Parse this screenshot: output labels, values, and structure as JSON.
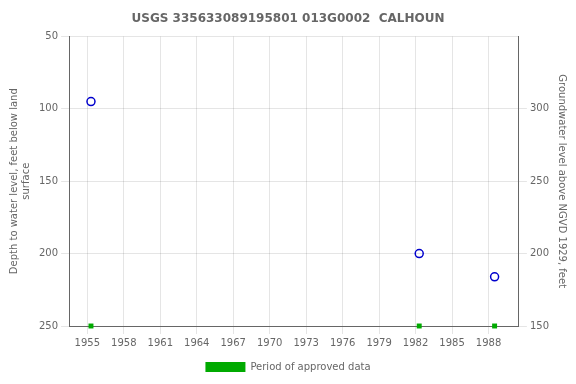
{
  "chart_data": {
    "type": "scatter",
    "title": "USGS 335633089195801 013G0002  CALHOUN",
    "x": [
      1955.3,
      1982.3,
      1988.5
    ],
    "series": [
      {
        "values": [
          95,
          200,
          216
        ],
        "color": "#0000cc",
        "marker": "circle"
      },
      {
        "name": "Period of approved data",
        "values": [
          250,
          250,
          250
        ],
        "color": "#00aa00",
        "marker": "square"
      }
    ],
    "xlim": [
      1953.5,
      1990.5
    ],
    "xticks": [
      1955,
      1958,
      1961,
      1964,
      1967,
      1970,
      1973,
      1976,
      1979,
      1982,
      1985,
      1988
    ],
    "ylim": [
      250,
      50
    ],
    "yticks": [
      50,
      100,
      150,
      200,
      250
    ],
    "y2lim": [
      150,
      350
    ],
    "y2ticks": [
      150,
      200,
      250,
      300
    ],
    "ylabel": "Depth to water level, feet below land\nsurface",
    "y2label": "Groundwater level above NGVD 1929, feet",
    "grid": true,
    "legend": "bottom"
  }
}
